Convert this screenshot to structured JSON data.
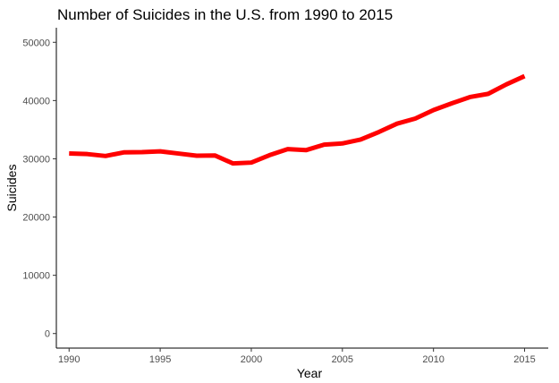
{
  "chart_data": {
    "type": "line",
    "title": "Number of Suicides in the U.S. from 1990 to 2015",
    "xlabel": "Year",
    "ylabel": "Suicides",
    "xlim": [
      1989.3,
      2016.3
    ],
    "ylim": [
      -2500,
      52500
    ],
    "x_ticks": [
      1990,
      1995,
      2000,
      2005,
      2010,
      2015
    ],
    "y_ticks": [
      0,
      10000,
      20000,
      30000,
      40000,
      50000
    ],
    "grid": false,
    "legend": "none",
    "series": [
      {
        "color": "#ff0000",
        "x": [
          1990,
          1991,
          1992,
          1993,
          1994,
          1995,
          1996,
          1997,
          1998,
          1999,
          2000,
          2001,
          2002,
          2003,
          2004,
          2005,
          2006,
          2007,
          2008,
          2009,
          2010,
          2011,
          2012,
          2013,
          2014,
          2015
        ],
        "y": [
          30906,
          30810,
          30484,
          31102,
          31142,
          31284,
          30903,
          30535,
          30575,
          29199,
          29350,
          30622,
          31655,
          31484,
          32439,
          32637,
          33300,
          34598,
          36035,
          36909,
          38364,
          39518,
          40600,
          41149,
          42773,
          44193
        ]
      }
    ]
  }
}
